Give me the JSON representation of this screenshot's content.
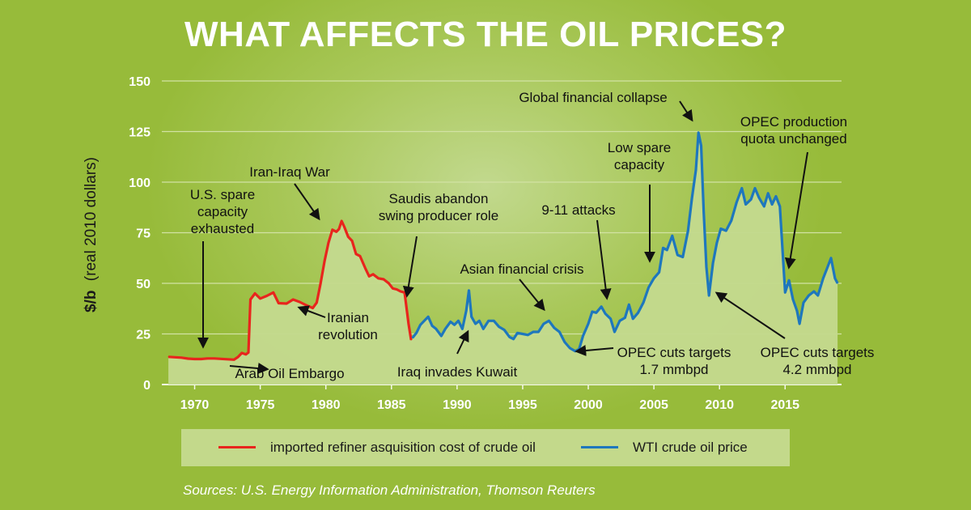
{
  "title": "WHAT AFFECTS THE OIL PRICES?",
  "source": "Sources: U.S. Energy Information Administration, Thomson Reuters",
  "colors": {
    "imported": "#e8251d",
    "wti": "#1e77bd",
    "area": "#c5db91",
    "text": "#1a1a1a"
  },
  "legend": {
    "imported": "imported refiner asquisition cost of crude oil",
    "wti": "WTI crude oil price"
  },
  "chart_data": {
    "type": "line",
    "ylabel_main": "$/b",
    "ylabel_sub": "(real 2010 dollars)",
    "xlim": [
      1967.5,
      2019.3
    ],
    "ylim": [
      0,
      150
    ],
    "yticks": [
      0,
      25,
      50,
      75,
      100,
      125,
      150
    ],
    "xticks": [
      1970,
      1975,
      1980,
      1985,
      1990,
      1995,
      2000,
      2005,
      2010,
      2015
    ],
    "grid": true,
    "series": [
      {
        "key": "imported",
        "name": "imported refiner asquisition cost of crude oil",
        "color": "#e8251d",
        "points": [
          [
            1968.0,
            13.7
          ],
          [
            1968.5,
            13.5
          ],
          [
            1969.0,
            13.3
          ],
          [
            1969.5,
            12.8
          ],
          [
            1970.0,
            12.6
          ],
          [
            1970.5,
            12.6
          ],
          [
            1971.0,
            12.9
          ],
          [
            1971.5,
            12.9
          ],
          [
            1972.0,
            12.7
          ],
          [
            1972.5,
            12.5
          ],
          [
            1973.0,
            12.3
          ],
          [
            1973.3,
            13.6
          ],
          [
            1973.6,
            15.6
          ],
          [
            1973.9,
            14.9
          ],
          [
            1974.1,
            15.8
          ],
          [
            1974.25,
            42.0
          ],
          [
            1974.6,
            45.0
          ],
          [
            1975.0,
            42.5
          ],
          [
            1975.5,
            43.8
          ],
          [
            1976.0,
            45.5
          ],
          [
            1976.4,
            40.2
          ],
          [
            1977.0,
            40.0
          ],
          [
            1977.5,
            42.0
          ],
          [
            1978.0,
            40.8
          ],
          [
            1978.5,
            39.2
          ],
          [
            1979.0,
            37.8
          ],
          [
            1979.3,
            40.5
          ],
          [
            1979.6,
            50.0
          ],
          [
            1979.9,
            61.0
          ],
          [
            1980.2,
            70.0
          ],
          [
            1980.5,
            76.5
          ],
          [
            1980.8,
            75.5
          ],
          [
            1981.0,
            76.8
          ],
          [
            1981.2,
            80.8
          ],
          [
            1981.4,
            78.0
          ],
          [
            1981.7,
            73.0
          ],
          [
            1982.0,
            71.0
          ],
          [
            1982.3,
            64.5
          ],
          [
            1982.6,
            63.5
          ],
          [
            1983.0,
            57.5
          ],
          [
            1983.3,
            53.5
          ],
          [
            1983.6,
            54.5
          ],
          [
            1984.0,
            52.5
          ],
          [
            1984.4,
            52.0
          ],
          [
            1984.8,
            50.0
          ],
          [
            1985.1,
            47.5
          ],
          [
            1985.4,
            47.0
          ],
          [
            1985.7,
            46.0
          ],
          [
            1986.0,
            45.5
          ],
          [
            1986.3,
            30.0
          ],
          [
            1986.5,
            22.0
          ]
        ]
      },
      {
        "key": "wti",
        "name": "WTI crude oil price",
        "color": "#1e77bd",
        "points": [
          [
            1986.6,
            23.0
          ],
          [
            1986.9,
            25.5
          ],
          [
            1987.2,
            29.5
          ],
          [
            1987.5,
            31.5
          ],
          [
            1987.8,
            33.5
          ],
          [
            1988.1,
            29.0
          ],
          [
            1988.4,
            27.5
          ],
          [
            1988.8,
            24.0
          ],
          [
            1989.1,
            27.5
          ],
          [
            1989.5,
            31.0
          ],
          [
            1989.8,
            29.5
          ],
          [
            1990.1,
            31.5
          ],
          [
            1990.4,
            27.5
          ],
          [
            1990.7,
            36.5
          ],
          [
            1990.9,
            46.5
          ],
          [
            1991.1,
            33.5
          ],
          [
            1991.4,
            30.0
          ],
          [
            1991.7,
            31.5
          ],
          [
            1992.0,
            27.5
          ],
          [
            1992.4,
            31.5
          ],
          [
            1992.8,
            31.5
          ],
          [
            1993.2,
            28.5
          ],
          [
            1993.6,
            27.0
          ],
          [
            1994.0,
            23.5
          ],
          [
            1994.3,
            22.5
          ],
          [
            1994.6,
            25.5
          ],
          [
            1995.0,
            25.0
          ],
          [
            1995.4,
            24.5
          ],
          [
            1995.8,
            26.0
          ],
          [
            1996.2,
            26.0
          ],
          [
            1996.6,
            30.0
          ],
          [
            1997.0,
            31.5
          ],
          [
            1997.4,
            28.0
          ],
          [
            1997.8,
            26.0
          ],
          [
            1998.2,
            21.0
          ],
          [
            1998.6,
            18.0
          ],
          [
            1999.0,
            16.5
          ],
          [
            1999.3,
            17.5
          ],
          [
            1999.6,
            24.0
          ],
          [
            2000.0,
            30.0
          ],
          [
            2000.3,
            36.0
          ],
          [
            2000.6,
            35.5
          ],
          [
            2001.0,
            38.5
          ],
          [
            2001.3,
            35.0
          ],
          [
            2001.7,
            32.5
          ],
          [
            2002.0,
            26.0
          ],
          [
            2002.4,
            31.5
          ],
          [
            2002.8,
            33.0
          ],
          [
            2003.1,
            39.5
          ],
          [
            2003.4,
            32.5
          ],
          [
            2003.8,
            35.5
          ],
          [
            2004.2,
            40.5
          ],
          [
            2004.6,
            48.0
          ],
          [
            2005.0,
            52.5
          ],
          [
            2005.4,
            55.5
          ],
          [
            2005.7,
            67.5
          ],
          [
            2006.0,
            66.5
          ],
          [
            2006.4,
            73.5
          ],
          [
            2006.8,
            64.0
          ],
          [
            2007.2,
            63.0
          ],
          [
            2007.6,
            76.0
          ],
          [
            2007.9,
            92.0
          ],
          [
            2008.2,
            106.0
          ],
          [
            2008.4,
            124.5
          ],
          [
            2008.6,
            118.0
          ],
          [
            2008.8,
            85.0
          ],
          [
            2009.0,
            58.0
          ],
          [
            2009.2,
            44.0
          ],
          [
            2009.5,
            60.0
          ],
          [
            2009.8,
            70.0
          ],
          [
            2010.1,
            77.0
          ],
          [
            2010.5,
            76.0
          ],
          [
            2010.9,
            81.0
          ],
          [
            2011.3,
            90.0
          ],
          [
            2011.7,
            97.0
          ],
          [
            2012.0,
            89.0
          ],
          [
            2012.4,
            91.5
          ],
          [
            2012.7,
            97.0
          ],
          [
            2013.0,
            92.5
          ],
          [
            2013.4,
            88.0
          ],
          [
            2013.7,
            94.5
          ],
          [
            2014.0,
            89.0
          ],
          [
            2014.3,
            93.0
          ],
          [
            2014.6,
            88.0
          ],
          [
            2014.8,
            67.0
          ],
          [
            2015.0,
            45.5
          ],
          [
            2015.3,
            51.5
          ],
          [
            2015.6,
            42.0
          ],
          [
            2015.9,
            36.5
          ],
          [
            2016.1,
            30.0
          ],
          [
            2016.4,
            40.5
          ],
          [
            2016.8,
            44.0
          ],
          [
            2017.2,
            46.0
          ],
          [
            2017.5,
            44.0
          ],
          [
            2017.9,
            52.5
          ],
          [
            2018.2,
            57.5
          ],
          [
            2018.5,
            62.5
          ],
          [
            2018.8,
            52.5
          ],
          [
            2019.0,
            50.0
          ]
        ]
      }
    ],
    "annotations": [
      "U.S. spare\ncapacity\nexhausted",
      "Arab Oil Embargo",
      "Iran-Iraq War",
      "Iranian\nrevolution",
      "Saudis abandon\nswing producer role",
      "Iraq invades Kuwait",
      "Asian financial crisis",
      "9-11 attacks",
      "OPEC cuts targets\n1.7 mmbpd",
      "Low spare\ncapacity",
      "Global financial collapse",
      "OPEC production\nquota unchanged",
      "OPEC cuts targets\n4.2 mmbpd"
    ]
  }
}
